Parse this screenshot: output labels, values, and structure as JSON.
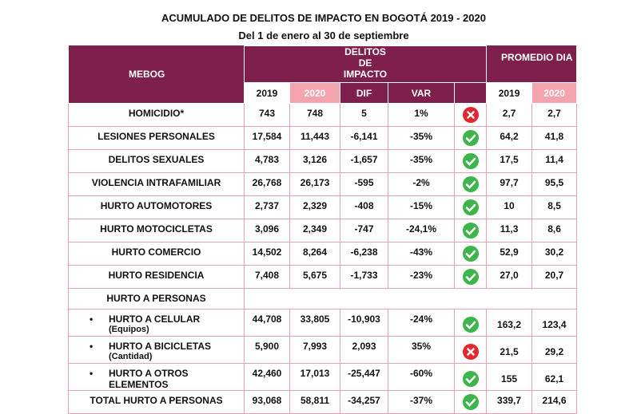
{
  "title": "ACUMULADO DE DELITOS DE IMPACTO EN BOGOTÁ 2019 - 2020",
  "subtitle": "Del 1 de enero al 30 de septiembre",
  "header": {
    "group": "MEBOG",
    "delitos": "DELITOS DE IMPACTO",
    "promedio": "PROMEDIO DIA",
    "cols": [
      "2019",
      "2020",
      "DIF",
      "VAR"
    ],
    "promedio_cols": [
      "2019",
      "2020"
    ]
  },
  "rows": [
    {
      "label": "HOMICIDIO*",
      "values": [
        "743",
        "748",
        "5",
        "1%"
      ],
      "icon": "cross",
      "promedio": [
        "2,7",
        "2,7"
      ]
    },
    {
      "label": "LESIONES PERSONALES",
      "values": [
        "17,584",
        "11,443",
        "-6,141",
        "-35%"
      ],
      "icon": "check",
      "promedio": [
        "64,2",
        "41,8"
      ]
    },
    {
      "label": "DELITOS SEXUALES",
      "values": [
        "4,783",
        "3,126",
        "-1,657",
        "-35%"
      ],
      "icon": "check",
      "promedio": [
        "17,5",
        "11,4"
      ]
    },
    {
      "label": "VIOLENCIA INTRAFAMILIAR",
      "values": [
        "26,768",
        "26,173",
        "-595",
        "-2%"
      ],
      "icon": "check",
      "promedio": [
        "97,7",
        "95,5"
      ]
    },
    {
      "label": "HURTO AUTOMOTORES",
      "values": [
        "2,737",
        "2,329",
        "-408",
        "-15%"
      ],
      "icon": "check",
      "promedio": [
        "10",
        "8,5"
      ]
    },
    {
      "label": "HURTO MOTOCICLETAS",
      "values": [
        "3,096",
        "2,349",
        "-747",
        "-24,1%"
      ],
      "icon": "check",
      "promedio": [
        "11,3",
        "8,6"
      ]
    },
    {
      "label": "HURTO COMERCIO",
      "values": [
        "14,502",
        "8,264",
        "-6,238",
        "-43%"
      ],
      "icon": "check",
      "promedio": [
        "52,9",
        "30,2"
      ]
    },
    {
      "label": "HURTO RESIDENCIA",
      "values": [
        "7,408",
        "5,675",
        "-1,733",
        "-23%"
      ],
      "icon": "check",
      "promedio": [
        "27,0",
        "20,7"
      ]
    },
    {
      "label": "HURTO A PERSONAS"
    },
    {
      "label": "HURTO A CELULAR",
      "sublabel": "(Equipos)",
      "bullet": true,
      "values": [
        "44,708",
        "33,805",
        "-10,903",
        "-24%"
      ],
      "icon": "check",
      "promedio": [
        "163,2",
        "123,4"
      ]
    },
    {
      "label": "HURTO A BICICLETAS",
      "sublabel": "(Cantidad)",
      "bullet": true,
      "values": [
        "5,900",
        "7,993",
        "2,093",
        "35%"
      ],
      "icon": "cross",
      "promedio": [
        "21,5",
        "29,2"
      ]
    },
    {
      "label": "HURTO A OTROS ELEMENTOS",
      "bullet": true,
      "values": [
        "42,460",
        "17,013",
        "-25,447",
        "-60%"
      ],
      "icon": "check",
      "promedio": [
        "155",
        "62,1"
      ]
    },
    {
      "label": "TOTAL HURTO A PERSONAS",
      "values": [
        "93,068",
        "58,811",
        "-34,257",
        "-37%"
      ],
      "icon": "check",
      "promedio": [
        "339,7",
        "214,6"
      ]
    }
  ]
}
